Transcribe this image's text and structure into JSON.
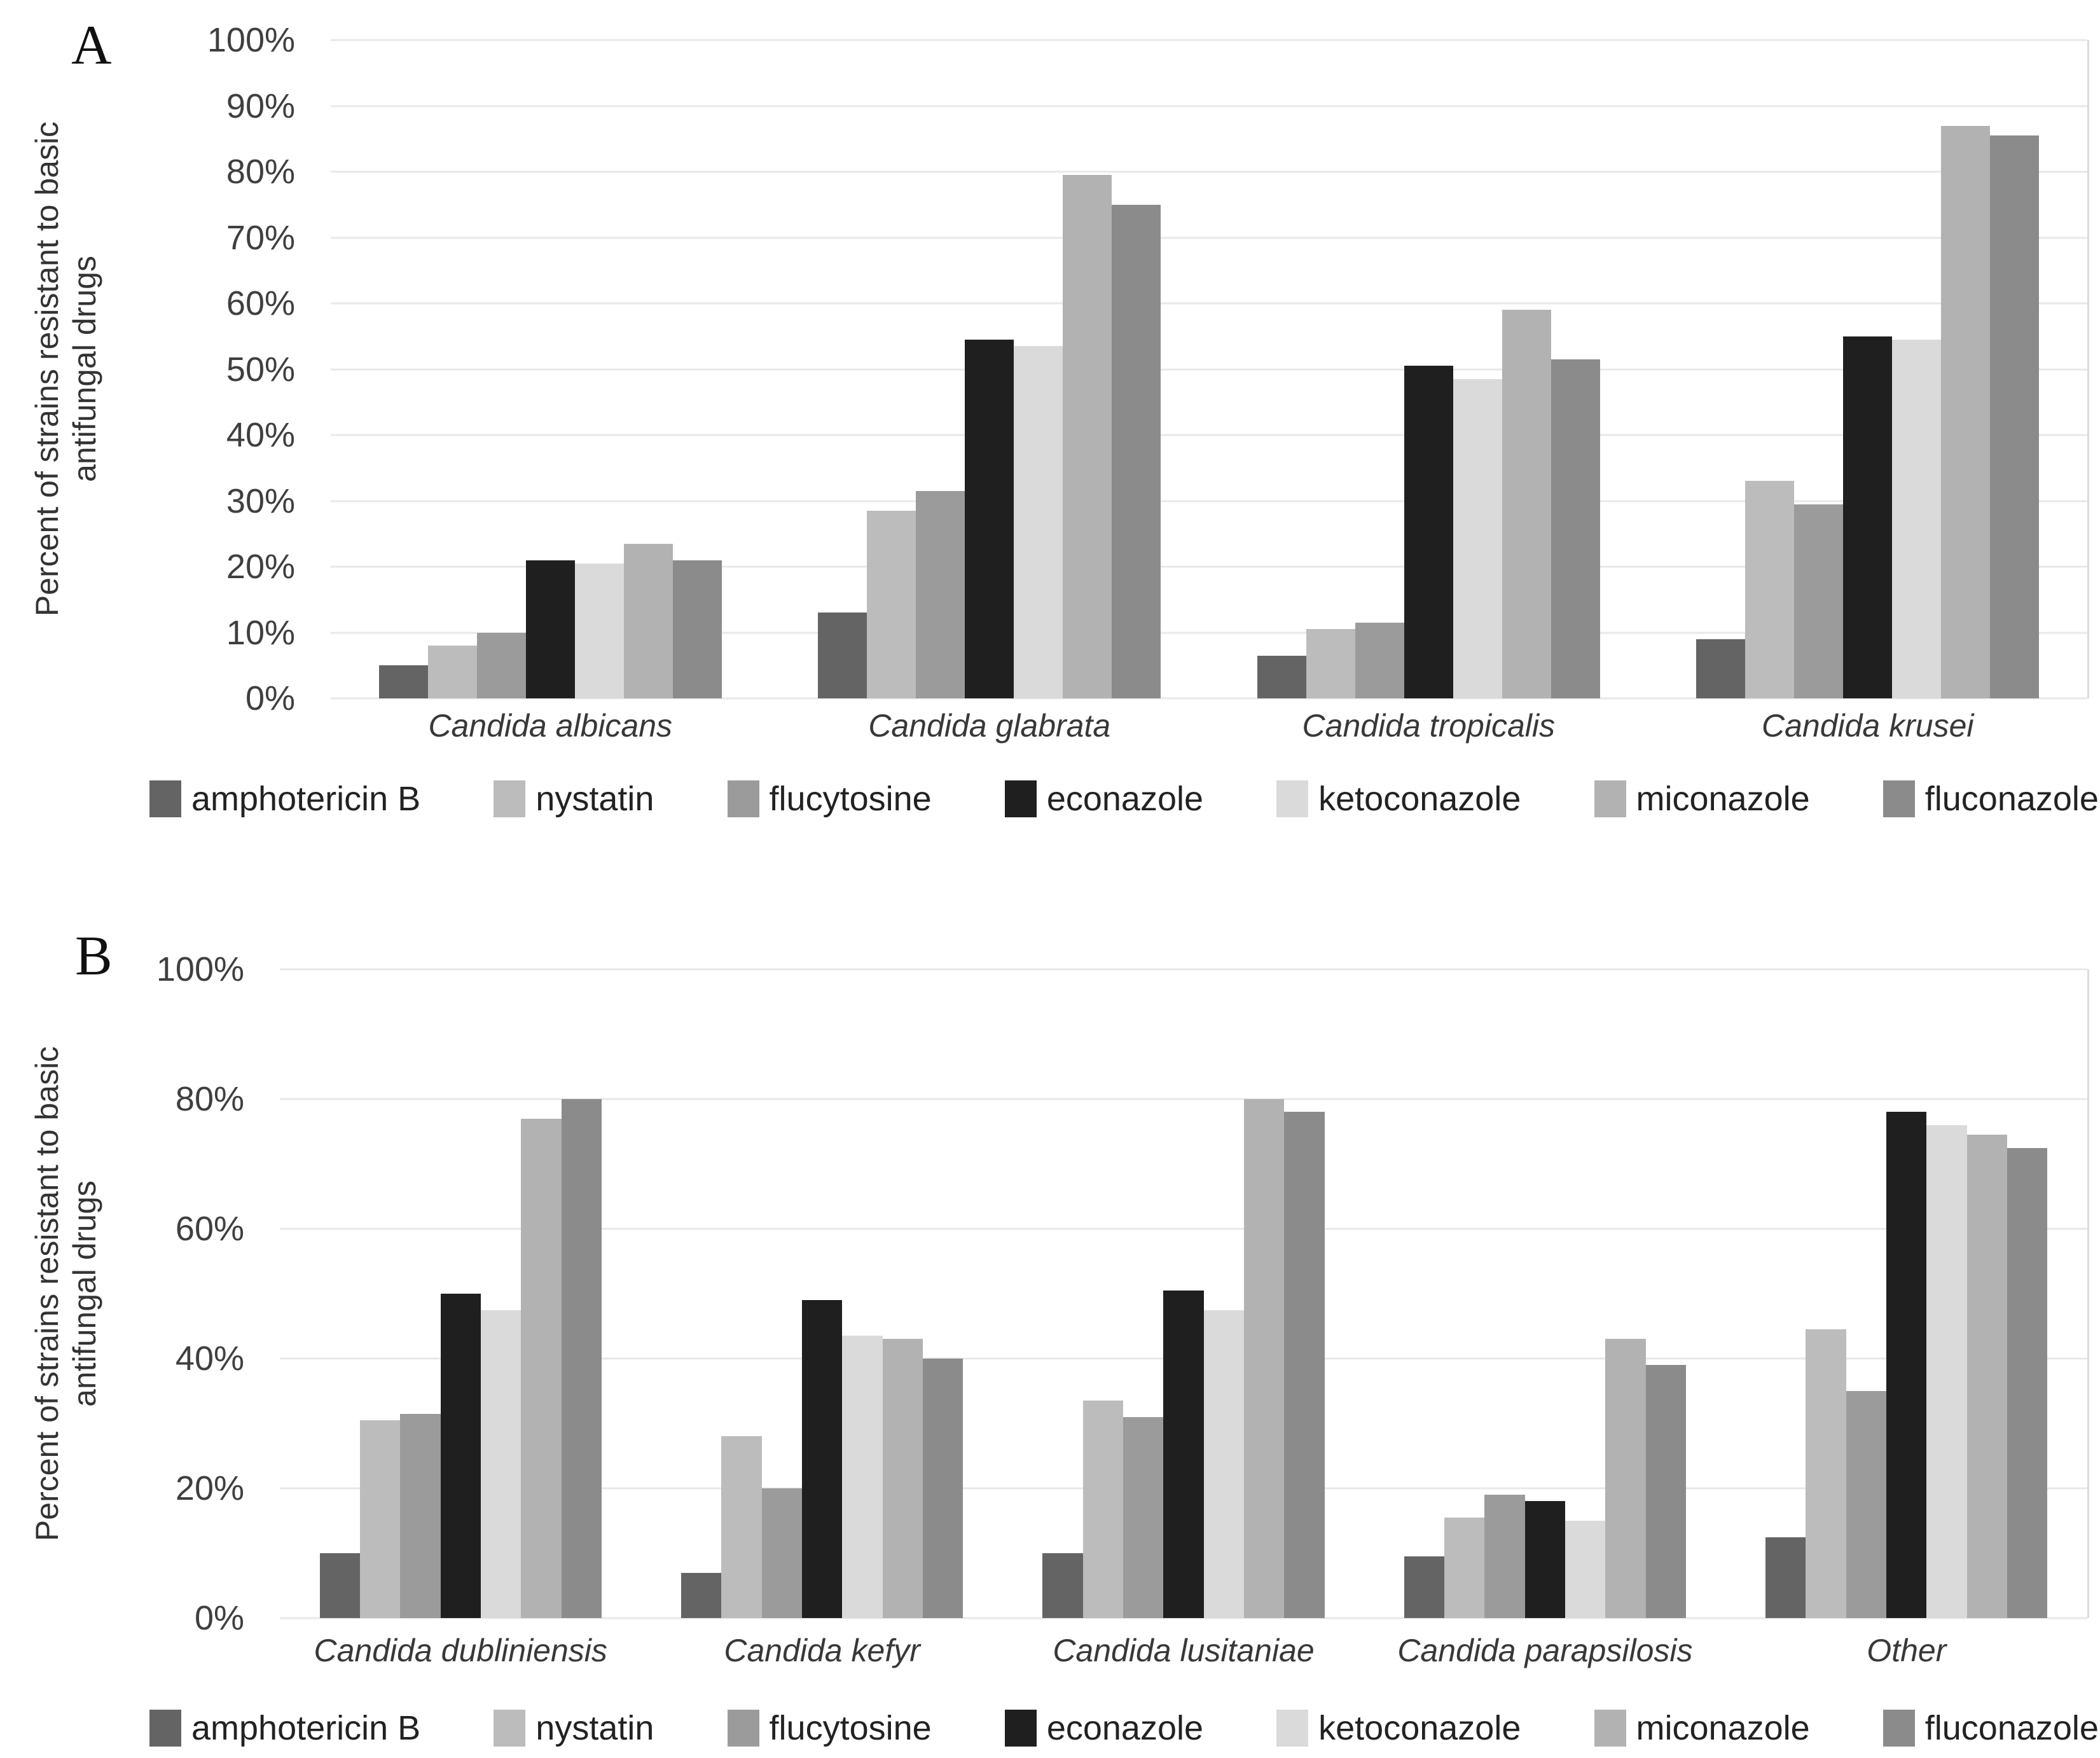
{
  "chart_data": [
    {
      "type": "bar",
      "title": "A",
      "ylabel": "Percent of strains resistant to basic antifungal drugs",
      "ylabel_lines": [
        "Percent of strains resistant to basic",
        "antifungal drugs"
      ],
      "xlabel": "",
      "ylim": [
        0,
        100
      ],
      "ytick_step": 10,
      "ytick_labels": [
        "100%",
        "90%",
        "80%",
        "70%",
        "60%",
        "50%",
        "40%",
        "30%",
        "20%",
        "10%",
        "0%"
      ],
      "grid": true,
      "legend_position": "bottom",
      "categories": [
        "Candida albicans",
        "Candida glabrata",
        "Candida tropicalis",
        "Candida krusei"
      ],
      "series": [
        {
          "name": "amphotericin B",
          "color": "#646464",
          "values": [
            5,
            13,
            6.5,
            9
          ]
        },
        {
          "name": "nystatin",
          "color": "#bcbcbc",
          "values": [
            8,
            28.5,
            10.5,
            33
          ]
        },
        {
          "name": "flucytosine",
          "color": "#9b9b9b",
          "values": [
            10,
            31.5,
            11.5,
            29.5
          ]
        },
        {
          "name": "econazole",
          "color": "#1f1f1f",
          "values": [
            21,
            54.5,
            50.5,
            55
          ]
        },
        {
          "name": "ketoconazole",
          "color": "#dadada",
          "values": [
            20.5,
            53.5,
            48.5,
            54.5
          ]
        },
        {
          "name": "miconazole",
          "color": "#b2b2b2",
          "values": [
            23.5,
            79.5,
            59,
            87
          ]
        },
        {
          "name": "fluconazole",
          "color": "#8b8b8b",
          "values": [
            21,
            75,
            51.5,
            85.5
          ]
        }
      ]
    },
    {
      "type": "bar",
      "title": "B",
      "ylabel": "Percent of strains resistant to basic antifungal drugs",
      "ylabel_lines": [
        "Percent of strains resistant to basic",
        "antifungal drugs"
      ],
      "xlabel": "",
      "ylim": [
        0,
        100
      ],
      "ytick_step": 20,
      "ytick_labels": [
        "100%",
        "80%",
        "60%",
        "40%",
        "20%",
        "0%"
      ],
      "grid": true,
      "legend_position": "bottom",
      "categories": [
        "Candida dubliniensis",
        "Candida kefyr",
        "Candida lusitaniae",
        "Candida parapsilosis",
        "Other"
      ],
      "series": [
        {
          "name": "amphotericin B",
          "color": "#646464",
          "values": [
            10,
            7,
            10,
            9.5,
            12.5
          ]
        },
        {
          "name": "nystatin",
          "color": "#bcbcbc",
          "values": [
            30.5,
            28,
            33.5,
            15.5,
            44.5
          ]
        },
        {
          "name": "flucytosine",
          "color": "#9b9b9b",
          "values": [
            31.5,
            20,
            31,
            19,
            35
          ]
        },
        {
          "name": "econazole",
          "color": "#1f1f1f",
          "values": [
            50,
            49,
            50.5,
            18,
            78
          ]
        },
        {
          "name": "ketoconazole",
          "color": "#dadada",
          "values": [
            47.5,
            43.5,
            47.5,
            15,
            76
          ]
        },
        {
          "name": "miconazole",
          "color": "#b2b2b2",
          "values": [
            77,
            43,
            80,
            43,
            74.5
          ]
        },
        {
          "name": "fluconazole",
          "color": "#8b8b8b",
          "values": [
            80,
            40,
            78,
            39,
            72.5
          ]
        }
      ]
    }
  ]
}
